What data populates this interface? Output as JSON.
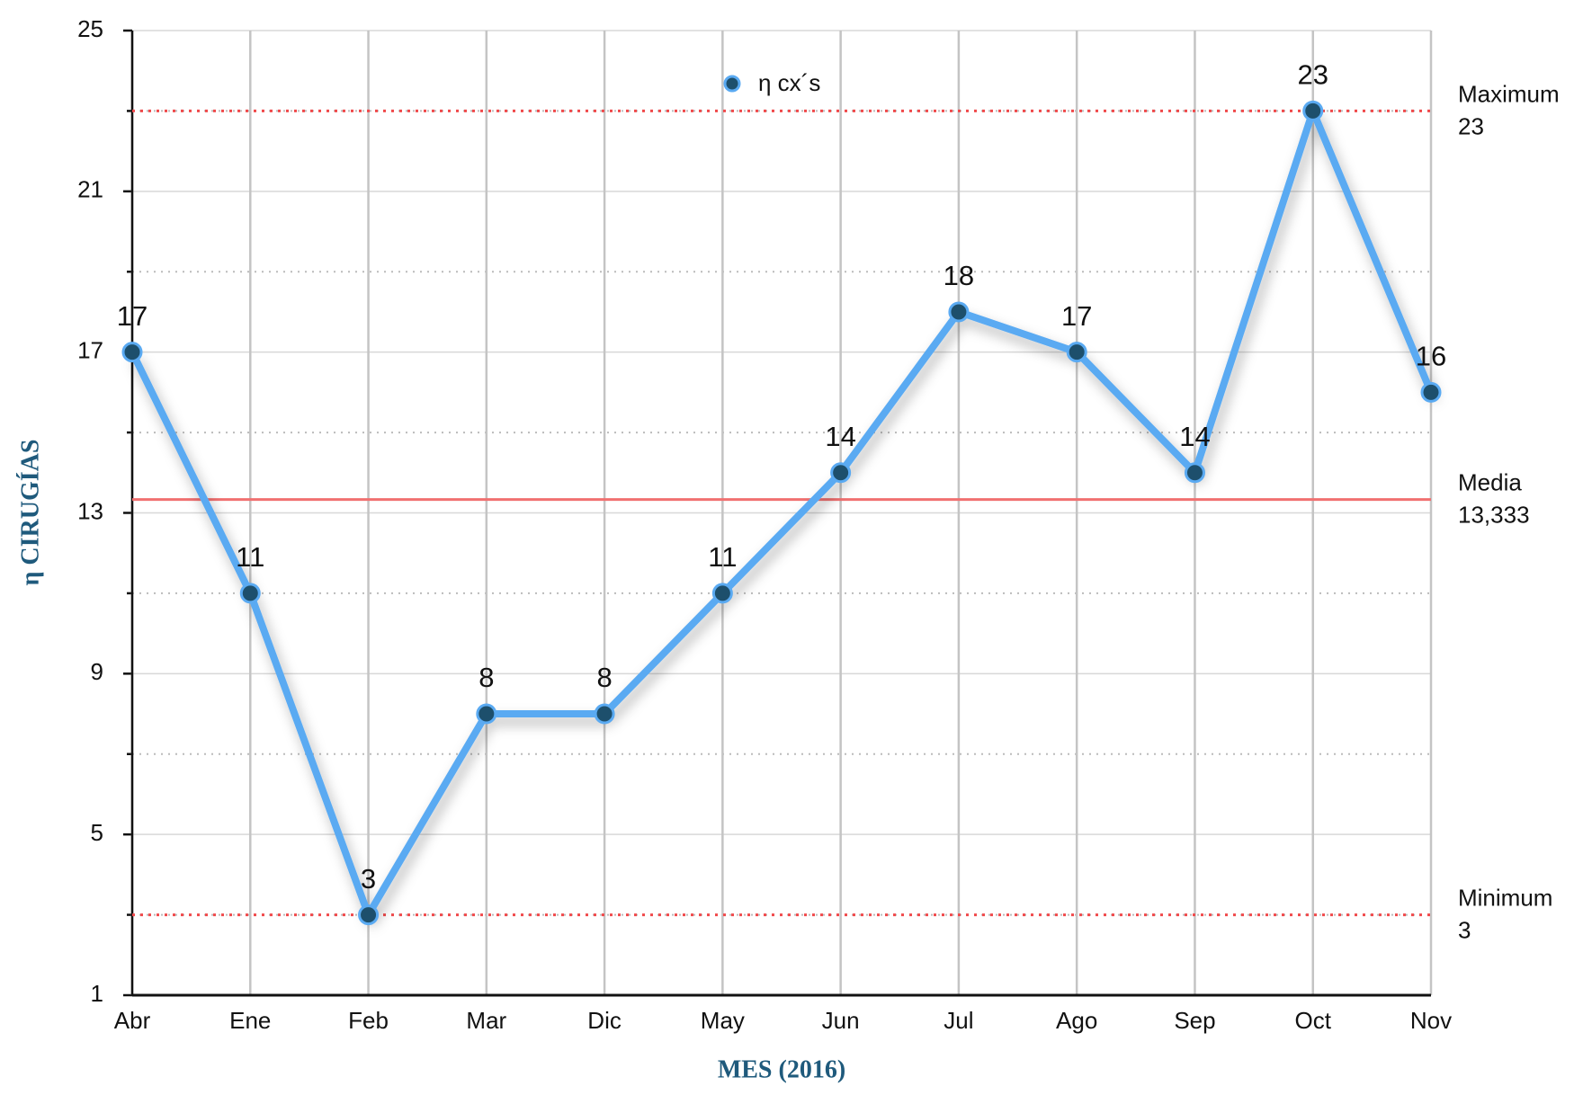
{
  "chart_data": {
    "type": "line",
    "categories": [
      "Abr",
      "Ene",
      "Feb",
      "Mar",
      "Dic",
      "May",
      "Jun",
      "Jul",
      "Ago",
      "Sep",
      "Oct",
      "Nov"
    ],
    "series": [
      {
        "name": "η cx´s",
        "color": "#5aaaf2",
        "marker_color": "#1d4f6c",
        "values": [
          17,
          11,
          3,
          8,
          8,
          11,
          14,
          18,
          17,
          14,
          23,
          16
        ]
      }
    ],
    "ylim": [
      1,
      25
    ],
    "yticks": [
      1,
      5,
      9,
      13,
      17,
      21,
      25
    ],
    "minor_yticks": [
      3,
      7,
      11,
      15,
      19,
      23
    ],
    "xlabel": "MES (2016)",
    "ylabel": "η CIRUGÍAS",
    "grid": true,
    "legend": "top",
    "reference_lines": [
      {
        "name": "Maximum",
        "value": 23,
        "label": "23",
        "style": "dotted",
        "color": "#f0494b"
      },
      {
        "name": "Media",
        "value": 13.333,
        "label": "13,333",
        "style": "solid",
        "color": "#f07070"
      },
      {
        "name": "Minimum",
        "value": 3,
        "label": "3",
        "style": "dotted",
        "color": "#f0494b"
      }
    ]
  }
}
